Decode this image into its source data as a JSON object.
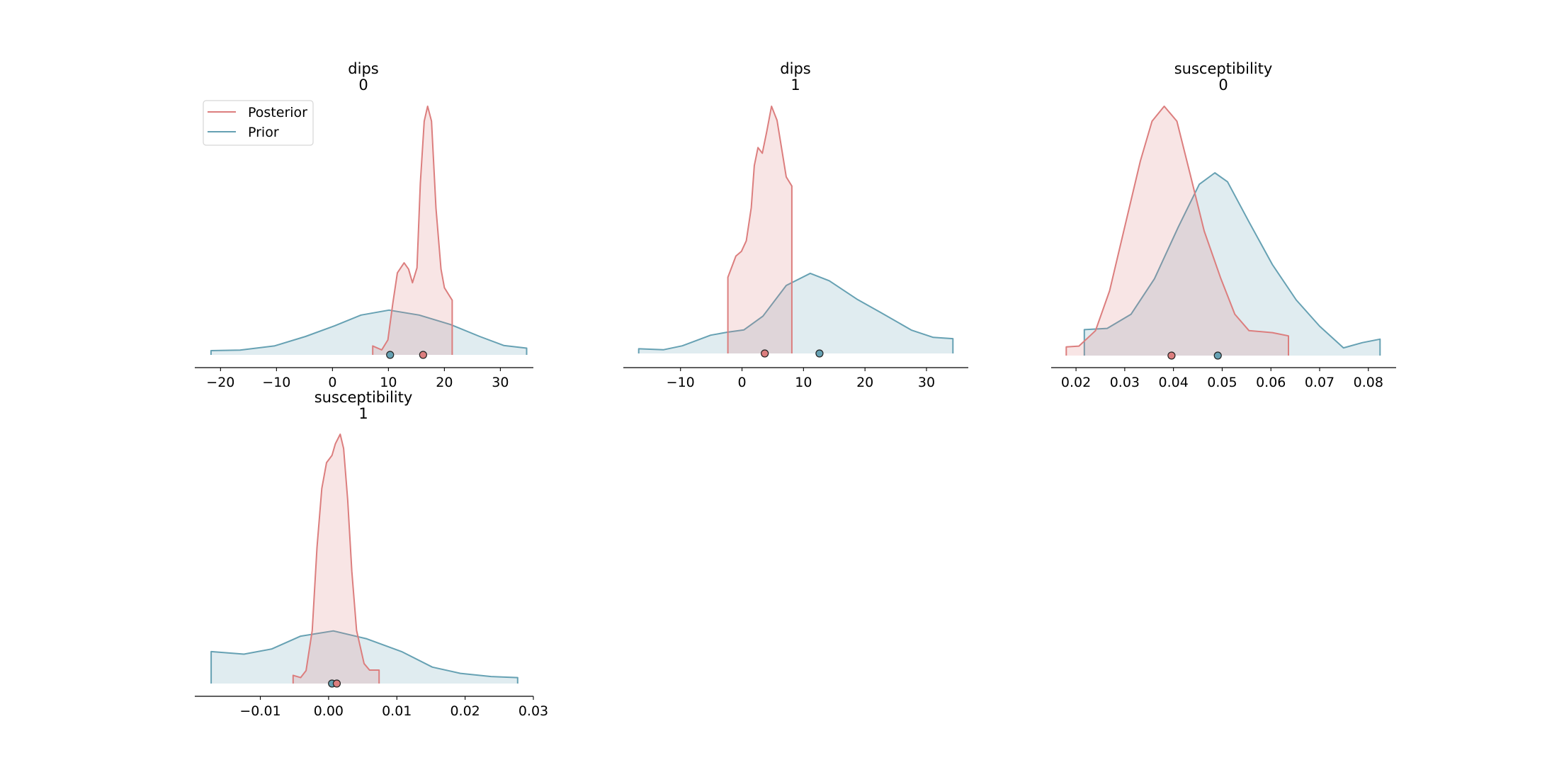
{
  "colors": {
    "posterior": "#dc7e7e",
    "prior": "#66a1b3"
  },
  "legend": {
    "placement": "upper-left",
    "posterior_label": "Posterior",
    "prior_label": "Prior"
  },
  "chart_data": [
    {
      "type": "area",
      "title": [
        "dips",
        "0"
      ],
      "xlim": [
        -24.6,
        35.9
      ],
      "xticks": [
        -20,
        -10,
        0,
        10,
        20,
        30
      ],
      "xtick_labels": [
        "−20",
        "−10",
        "0",
        "10",
        "20",
        "30"
      ],
      "y_axis_visible": false,
      "series": [
        {
          "name": "Posterior",
          "point_estimate": 16.2,
          "x": [
            7.2,
            7.2,
            8.8,
            9.9,
            10.8,
            11.6,
            12.8,
            13.6,
            14.3,
            15.1,
            15.7,
            16.4,
            17.0,
            17.7,
            18.5,
            19.4,
            20.0,
            21.4,
            21.4
          ],
          "density": [
            0,
            0.036,
            0.02,
            0.06,
            0.21,
            0.33,
            0.37,
            0.345,
            0.29,
            0.35,
            0.69,
            0.94,
            1.0,
            0.94,
            0.59,
            0.345,
            0.27,
            0.22,
            0
          ]
        },
        {
          "name": "Prior",
          "point_estimate": 10.3,
          "x": [
            -21.7,
            -21.7,
            -16.5,
            -10.4,
            -4.8,
            0.4,
            5.1,
            10.1,
            15.5,
            21.1,
            26.3,
            30.6,
            34.7,
            34.7
          ],
          "density": [
            0,
            0.017,
            0.019,
            0.036,
            0.074,
            0.117,
            0.16,
            0.18,
            0.16,
            0.122,
            0.074,
            0.038,
            0.027,
            0
          ]
        }
      ]
    },
    {
      "type": "area",
      "title": [
        "dips",
        "1"
      ],
      "xlim": [
        -19.3,
        36.8
      ],
      "xticks": [
        -10,
        0,
        10,
        20,
        30
      ],
      "xtick_labels": [
        "−10",
        "0",
        "10",
        "20",
        "30"
      ],
      "y_axis_visible": false,
      "series": [
        {
          "name": "Posterior",
          "point_estimate": 3.7,
          "x": [
            -2.3,
            -2.3,
            -1.0,
            -0.1,
            0.7,
            1.5,
            2.0,
            2.6,
            3.3,
            4.0,
            4.8,
            5.7,
            6.5,
            7.2,
            8.1,
            8.1
          ],
          "density": [
            0,
            0.308,
            0.394,
            0.413,
            0.456,
            0.59,
            0.76,
            0.833,
            0.81,
            0.895,
            1.0,
            0.943,
            0.82,
            0.714,
            0.677,
            0
          ]
        },
        {
          "name": "Prior",
          "point_estimate": 12.6,
          "x": [
            -16.8,
            -16.8,
            -12.8,
            -9.7,
            -5.1,
            -2.4,
            0.3,
            3.4,
            7.2,
            11.1,
            14.2,
            18.8,
            22.6,
            27.6,
            31.1,
            34.3,
            34.3
          ],
          "density": [
            0,
            0.019,
            0.015,
            0.031,
            0.074,
            0.086,
            0.095,
            0.151,
            0.275,
            0.324,
            0.294,
            0.218,
            0.165,
            0.094,
            0.065,
            0.06,
            0
          ]
        }
      ]
    },
    {
      "type": "area",
      "title": [
        "susceptibility",
        "0"
      ],
      "xlim": [
        0.0149,
        0.0857
      ],
      "xticks": [
        0.02,
        0.03,
        0.04,
        0.05,
        0.06,
        0.07,
        0.08
      ],
      "xtick_labels": [
        "0.02",
        "0.03",
        "0.04",
        "0.05",
        "0.06",
        "0.07",
        "0.08"
      ],
      "y_axis_visible": false,
      "series": [
        {
          "name": "Posterior",
          "point_estimate": 0.0396,
          "x": [
            0.018,
            0.018,
            0.0206,
            0.024,
            0.0269,
            0.0298,
            0.0332,
            0.0356,
            0.0381,
            0.0407,
            0.0434,
            0.0463,
            0.0497,
            0.0526,
            0.0555,
            0.0603,
            0.0636,
            0.0636
          ],
          "density": [
            0,
            0.035,
            0.038,
            0.1,
            0.26,
            0.5,
            0.78,
            0.94,
            1.0,
            0.94,
            0.73,
            0.5,
            0.31,
            0.166,
            0.1,
            0.092,
            0.079,
            0
          ]
        },
        {
          "name": "Prior",
          "point_estimate": 0.0491,
          "x": [
            0.0217,
            0.0217,
            0.0264,
            0.0313,
            0.0361,
            0.041,
            0.0453,
            0.0485,
            0.0511,
            0.0555,
            0.0603,
            0.0652,
            0.07,
            0.0749,
            0.0788,
            0.0824,
            0.0824
          ],
          "density": [
            0,
            0.104,
            0.109,
            0.166,
            0.308,
            0.516,
            0.687,
            0.733,
            0.697,
            0.536,
            0.365,
            0.223,
            0.118,
            0.031,
            0.052,
            0.066,
            0
          ]
        }
      ]
    },
    {
      "type": "area",
      "title": [
        "susceptibility",
        "1"
      ],
      "xlim": [
        -0.0196,
        0.03
      ],
      "xticks": [
        -0.01,
        0.0,
        0.01,
        0.02,
        0.03
      ],
      "xtick_labels": [
        "−0.01",
        "0.00",
        "0.01",
        "0.02",
        "0.03"
      ],
      "y_axis_visible": false,
      "series": [
        {
          "name": "Posterior",
          "point_estimate": 0.0012,
          "x": [
            -0.0052,
            -0.0052,
            -0.0041,
            -0.0033,
            -0.0024,
            -0.0017,
            -0.001,
            -0.0003,
            0.0005,
            0.001,
            0.0017,
            0.0022,
            0.0028,
            0.0034,
            0.0041,
            0.0052,
            0.006,
            0.0074,
            0.0074
          ],
          "density": [
            0,
            0.033,
            0.024,
            0.052,
            0.213,
            0.545,
            0.782,
            0.886,
            0.915,
            0.962,
            1.0,
            0.943,
            0.735,
            0.45,
            0.213,
            0.08,
            0.054,
            0.054,
            0
          ]
        },
        {
          "name": "Prior",
          "point_estimate": 0.0005,
          "x": [
            -0.0172,
            -0.0172,
            -0.0124,
            -0.0083,
            -0.0041,
            0.0007,
            0.0055,
            0.0107,
            0.0152,
            0.0193,
            0.0238,
            0.0277,
            0.0277
          ],
          "density": [
            0,
            0.128,
            0.118,
            0.139,
            0.19,
            0.211,
            0.18,
            0.128,
            0.066,
            0.041,
            0.028,
            0.024,
            0
          ]
        }
      ]
    }
  ]
}
